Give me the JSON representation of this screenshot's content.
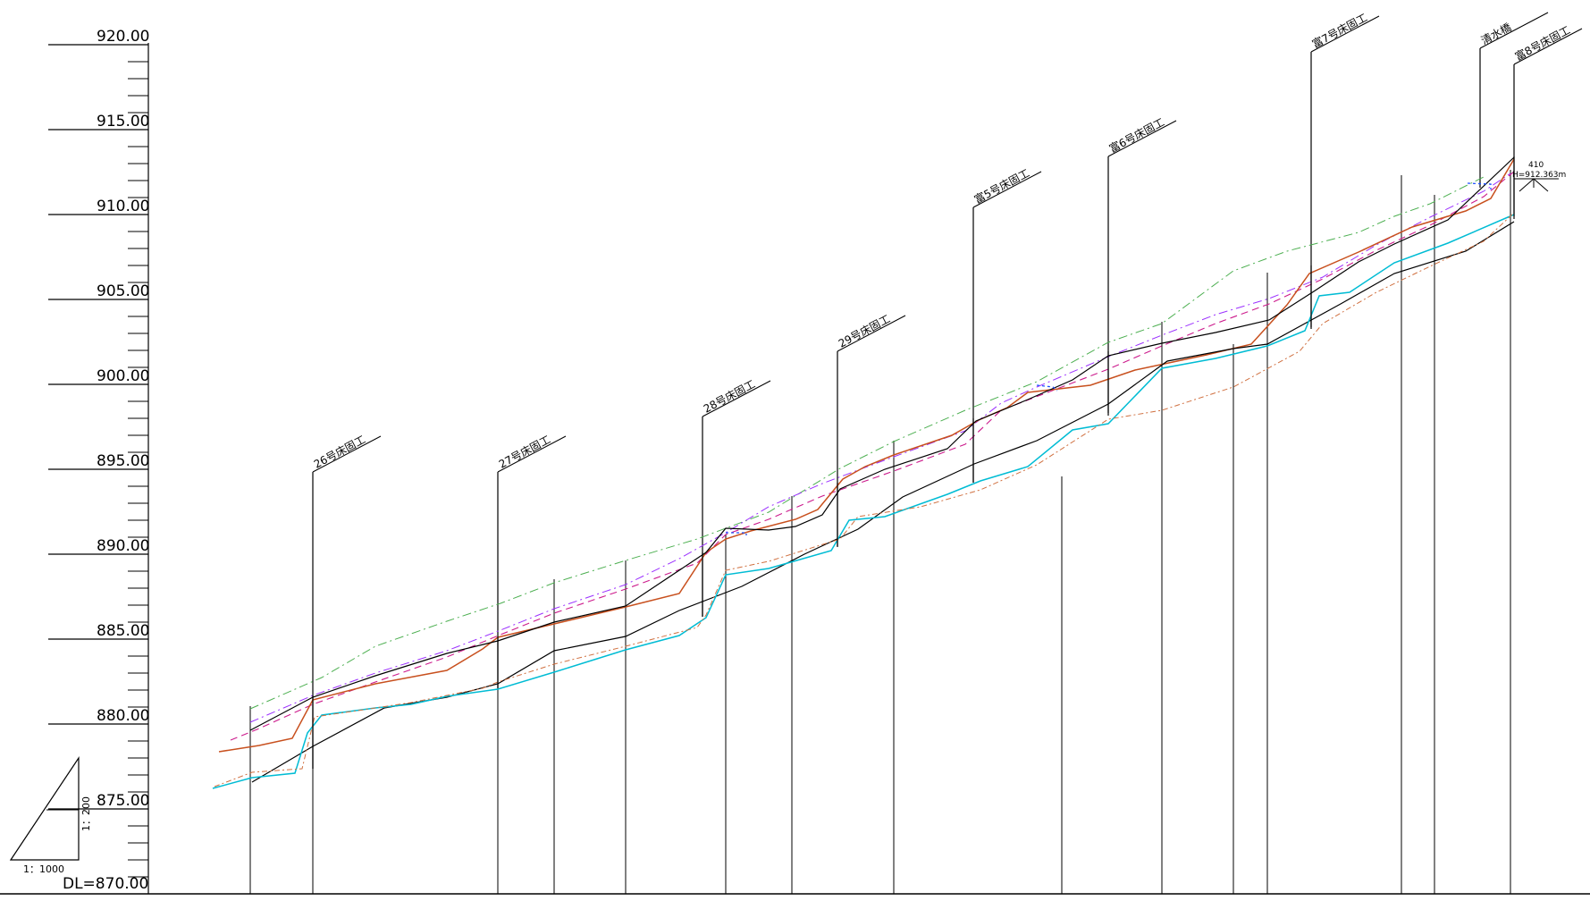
{
  "datum": "DL=870.00",
  "axis": {
    "labels": [
      "920.00",
      "915.00",
      "910.00",
      "905.00",
      "900.00",
      "895.00",
      "890.00",
      "885.00",
      "880.00",
      "875.00"
    ],
    "values": [
      920,
      915,
      910,
      905,
      900,
      895,
      890,
      885,
      880,
      875
    ]
  },
  "scale": {
    "horizontal": "1：1000",
    "vertical": "1：200"
  },
  "structures": [
    {
      "label": "26号床固工",
      "x_station": 308
    },
    {
      "label": "27号床固工",
      "x_station": 490
    },
    {
      "label": "28号床固工",
      "x_station": 691
    },
    {
      "label": "29号床固工",
      "x_station": 824
    },
    {
      "label": "富5号床固工",
      "x_station": 957
    },
    {
      "label": "富6号床固工",
      "x_station": 1090
    },
    {
      "label": "富7号床固工",
      "x_station": 1289
    },
    {
      "label": "清水橋",
      "x_station": 1455
    },
    {
      "label": "富8号床固工",
      "x_station": 1490
    }
  ],
  "endpoint_note": {
    "number": "410",
    "elevation": "H=912.363m"
  },
  "colors": {
    "bank_left": "#4caf50",
    "bank_right": "#9b30ff",
    "design_bed": "#c8501e",
    "existing_bed": "#000000",
    "old_bed": "#00bcd4",
    "planned": "#cc1a8c",
    "sediment": "#d07040",
    "water": "#1e50ff"
  }
}
